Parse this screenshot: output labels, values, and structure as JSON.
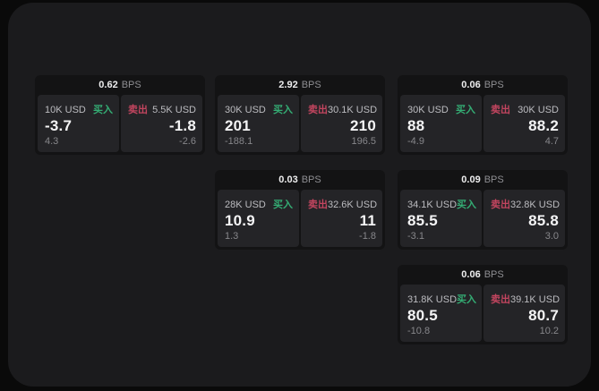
{
  "colors": {
    "buy_accent": "#34ad74",
    "sell_accent": "#c2455f",
    "window_bg": "#1b1b1d",
    "card_bg": "#131314",
    "panel_bg": "#242427"
  },
  "labels": {
    "buy": "买入",
    "sell": "卖出",
    "bps_unit": "BPS"
  },
  "cards": [
    {
      "bps_value": "0.62",
      "bps_unit": "BPS",
      "buy": {
        "amount": "10K USD",
        "side": "买入",
        "price": "-3.7",
        "delta": "4.3"
      },
      "sell": {
        "amount": "5.5K USD",
        "side": "卖出",
        "price": "-1.8",
        "delta": "-2.6"
      }
    },
    {
      "bps_value": "2.92",
      "bps_unit": "BPS",
      "buy": {
        "amount": "30K USD",
        "side": "买入",
        "price": "201",
        "delta": "-188.1"
      },
      "sell": {
        "amount": "30.1K USD",
        "side": "卖出",
        "price": "210",
        "delta": "196.5"
      }
    },
    {
      "bps_value": "0.06",
      "bps_unit": "BPS",
      "buy": {
        "amount": "30K USD",
        "side": "买入",
        "price": "88",
        "delta": "-4.9"
      },
      "sell": {
        "amount": "30K USD",
        "side": "卖出",
        "price": "88.2",
        "delta": "4.7"
      }
    },
    {
      "bps_value": "0.03",
      "bps_unit": "BPS",
      "buy": {
        "amount": "28K USD",
        "side": "买入",
        "price": "10.9",
        "delta": "1.3"
      },
      "sell": {
        "amount": "32.6K USD",
        "side": "卖出",
        "price": "11",
        "delta": "-1.8"
      }
    },
    {
      "bps_value": "0.09",
      "bps_unit": "BPS",
      "buy": {
        "amount": "34.1K USD",
        "side": "买入",
        "price": "85.5",
        "delta": "-3.1"
      },
      "sell": {
        "amount": "32.8K USD",
        "side": "卖出",
        "price": "85.8",
        "delta": "3.0"
      }
    },
    {
      "bps_value": "0.06",
      "bps_unit": "BPS",
      "buy": {
        "amount": "31.8K USD",
        "side": "买入",
        "price": "80.5",
        "delta": "-10.8"
      },
      "sell": {
        "amount": "39.1K USD",
        "side": "卖出",
        "price": "80.7",
        "delta": "10.2"
      }
    }
  ]
}
